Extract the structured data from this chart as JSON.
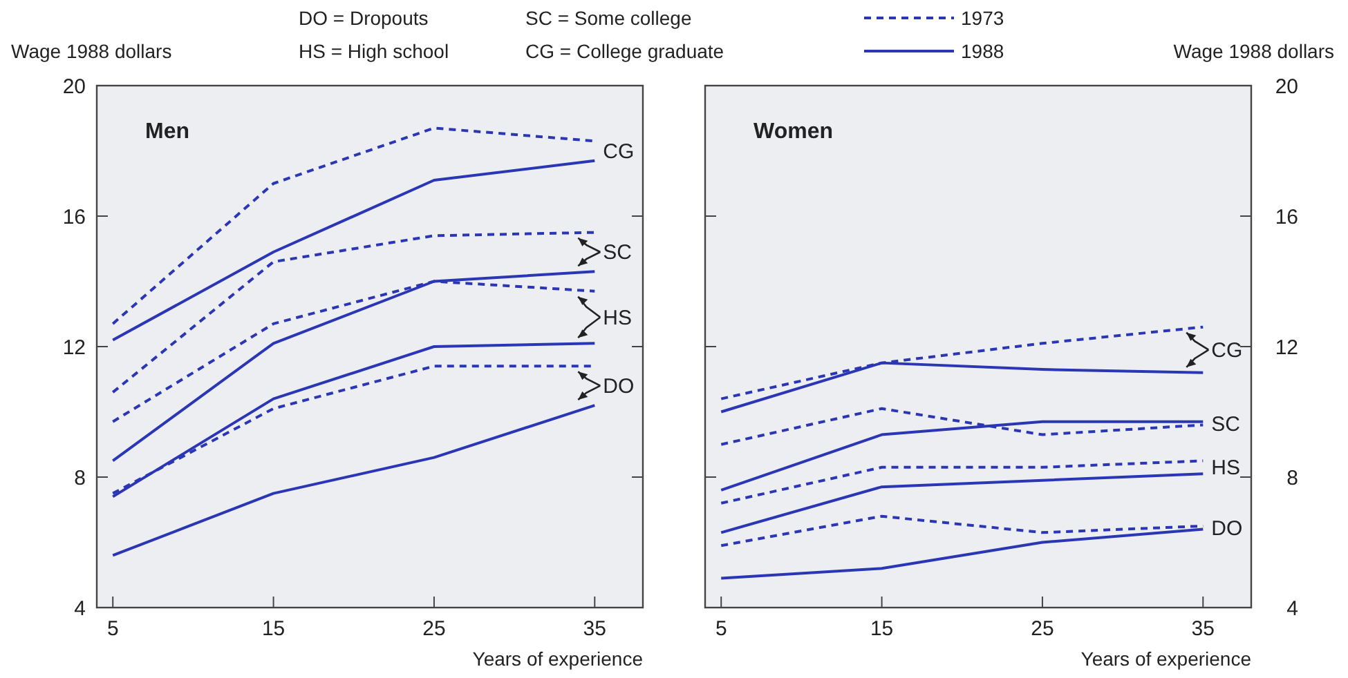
{
  "chart_data": [
    {
      "type": "line",
      "title": "Men",
      "ylabel": "Wage 1988 dollars",
      "xlabel": "Years of experience",
      "x": [
        5,
        15,
        25,
        35
      ],
      "xlim": [
        4,
        38
      ],
      "xticks": [
        5,
        15,
        25,
        35
      ],
      "ylim": [
        4,
        20
      ],
      "yticks": [
        4,
        8,
        12,
        16,
        20
      ],
      "legend": "top",
      "grid": false,
      "series": [
        {
          "name": "1973",
          "color": "#2b36b5",
          "line_style": "dashed",
          "values": [
            12.7,
            17.0,
            18.7,
            18.3
          ]
        },
        {
          "name": "1988",
          "color": "#2b36b5",
          "line_style": "solid",
          "values": [
            12.2,
            14.9,
            17.1,
            17.7
          ]
        },
        {
          "color": "#2b36b5",
          "line_style": "dashed",
          "values": [
            10.6,
            14.6,
            15.4,
            15.5
          ]
        },
        {
          "color": "#2b36b5",
          "line_style": "solid",
          "values": [
            8.5,
            12.1,
            14.0,
            14.3
          ]
        },
        {
          "color": "#2b36b5",
          "line_style": "dashed",
          "values": [
            9.7,
            12.7,
            14.0,
            13.7
          ]
        },
        {
          "color": "#2b36b5",
          "line_style": "solid",
          "values": [
            7.4,
            10.4,
            12.0,
            12.1
          ]
        },
        {
          "color": "#2b36b5",
          "line_style": "dashed",
          "values": [
            7.5,
            10.1,
            11.4,
            11.4
          ]
        },
        {
          "color": "#2b36b5",
          "line_style": "solid",
          "values": [
            5.6,
            7.5,
            8.6,
            10.2
          ]
        }
      ],
      "annotations": [
        "CG",
        "SC",
        "HS",
        "DO",
        "DO = Dropouts",
        "HS = High school",
        "SC = Some college",
        "CG = College graduate"
      ]
    },
    {
      "type": "line",
      "title": "Women",
      "y2label": "Wage 1988 dollars",
      "xlabel": "Years of experience",
      "x": [
        5,
        15,
        25,
        35
      ],
      "xlim": [
        4,
        38
      ],
      "xticks": [
        5,
        15,
        25,
        35
      ],
      "y2lim": [
        4,
        20
      ],
      "y2ticks": [
        4,
        8,
        12,
        16,
        20
      ],
      "grid": false,
      "series": [
        {
          "color": "#2b36b5",
          "line_style": "dashed",
          "axis": "y2",
          "values": [
            10.4,
            11.5,
            12.1,
            12.6
          ]
        },
        {
          "color": "#2b36b5",
          "line_style": "solid",
          "axis": "y2",
          "values": [
            10.0,
            11.5,
            11.3,
            11.2
          ]
        },
        {
          "color": "#2b36b5",
          "line_style": "dashed",
          "axis": "y2",
          "values": [
            9.0,
            10.1,
            9.3,
            9.6
          ]
        },
        {
          "color": "#2b36b5",
          "line_style": "solid",
          "axis": "y2",
          "values": [
            7.6,
            9.3,
            9.7,
            9.7
          ]
        },
        {
          "color": "#2b36b5",
          "line_style": "dashed",
          "axis": "y2",
          "values": [
            7.2,
            8.3,
            8.3,
            8.5
          ]
        },
        {
          "color": "#2b36b5",
          "line_style": "solid",
          "axis": "y2",
          "values": [
            6.3,
            7.7,
            7.9,
            8.1
          ]
        },
        {
          "color": "#2b36b5",
          "line_style": "dashed",
          "axis": "y2",
          "values": [
            5.9,
            6.8,
            6.3,
            6.5
          ]
        },
        {
          "color": "#2b36b5",
          "line_style": "solid",
          "axis": "y2",
          "values": [
            4.9,
            5.2,
            6.0,
            6.4
          ]
        }
      ],
      "annotations": [
        "CG",
        "SC",
        "HS",
        "DO"
      ]
    }
  ]
}
